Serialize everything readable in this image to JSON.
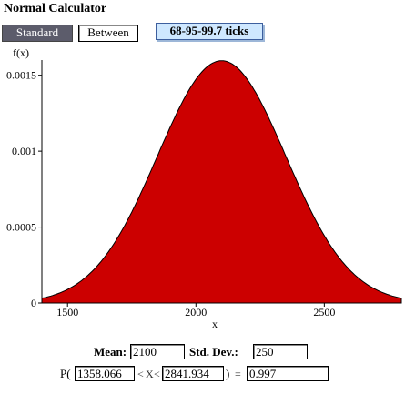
{
  "app": {
    "title": "Normal Calculator"
  },
  "mode_buttons": {
    "standard": "Standard",
    "between": "Between",
    "ticks": "68-95-99.7 ticks"
  },
  "plot": {
    "y_axis_label": "f(x)",
    "x_axis_label": "x",
    "y_ticks": [
      "0.0015",
      "0.001",
      "0.0005",
      "0"
    ],
    "x_ticks": [
      "1500",
      "2000",
      "2500"
    ],
    "curve_fill": "#cc0000",
    "mean": 2100,
    "sd": 250,
    "shaded_from": 1358.066,
    "shaded_to": 2841.934,
    "x_range": [
      1400,
      2800
    ],
    "y_range": [
      0,
      0.0016
    ]
  },
  "params": {
    "mean_label": "Mean:",
    "mean_value": "2100",
    "sd_label": "Std. Dev.:",
    "sd_value": "250"
  },
  "prob": {
    "prefix": "P(",
    "lower": "1358.066",
    "lt1": "<",
    "var": "X",
    "lt2": "<",
    "upper": "2841.934",
    "suffix": ")",
    "equals": "=",
    "result": "0.997"
  }
}
